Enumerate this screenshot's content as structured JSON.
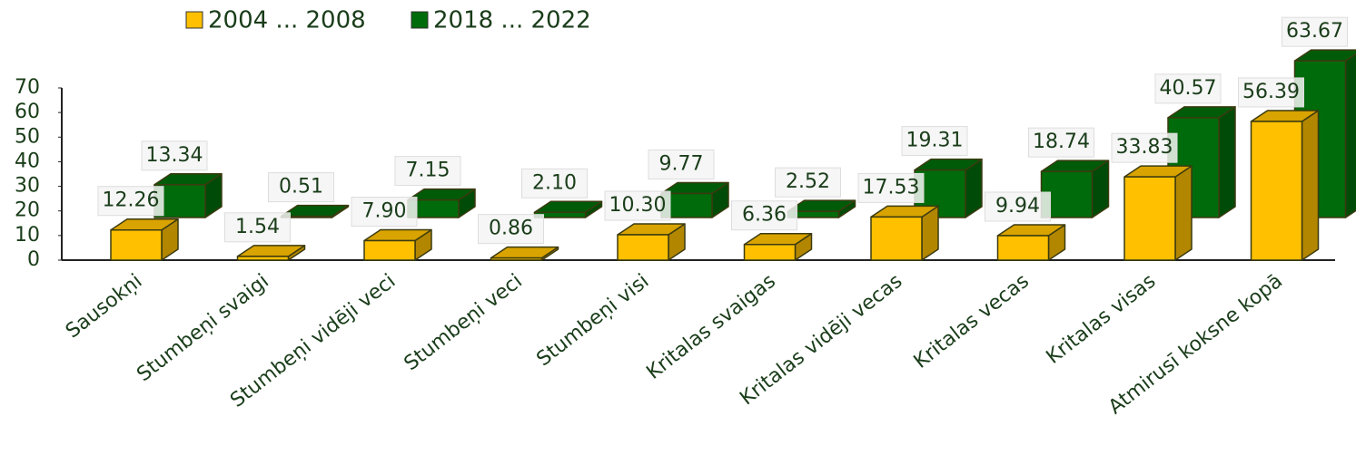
{
  "chart_data": {
    "type": "bar3d",
    "categories": [
      "Sausokņi",
      "Stumbeņi svaigi",
      "Stumbeņi vidēji veci",
      "Stumbeņi veci",
      "Stumbeņi visi",
      "Kritalas svaigas",
      "Kritalas vidēji vecas",
      "Kritalas vecas",
      "Kritalas visas",
      "Atmirusī koksne kopā"
    ],
    "series": [
      {
        "name": "2004 ... 2008",
        "color": "#ffc000",
        "values": [
          12.26,
          1.54,
          7.9,
          0.86,
          10.3,
          6.36,
          17.53,
          9.94,
          33.83,
          56.39
        ],
        "value_labels": [
          "12.26",
          "1.54",
          "7.90",
          "0.86",
          "10.30",
          "6.36",
          "17.53",
          "9.94",
          "33.83",
          "56.39"
        ]
      },
      {
        "name": "2018 ... 2022",
        "color": "#006b0a",
        "values": [
          13.34,
          0.51,
          7.15,
          2.1,
          9.77,
          2.52,
          19.31,
          18.74,
          40.57,
          63.67
        ],
        "value_labels": [
          "13.34",
          "0.51",
          "7.15",
          "2.10",
          "9.77",
          "2.52",
          "19.31",
          "18.74",
          "40.57",
          "63.67"
        ]
      }
    ],
    "ylim": [
      0,
      70
    ],
    "yticks": [
      0,
      10,
      20,
      30,
      40,
      50,
      60,
      70
    ],
    "legend": "top-left"
  }
}
